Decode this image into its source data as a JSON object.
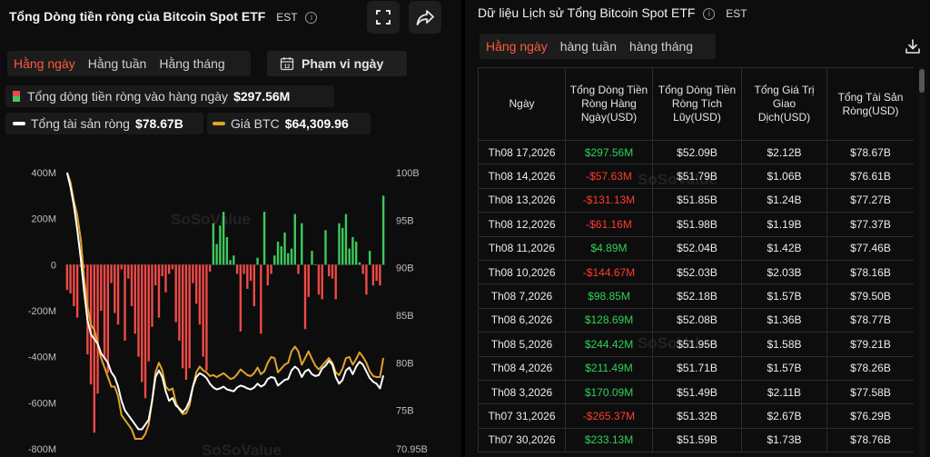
{
  "left_panel": {
    "title": "Tổng Dòng tiền ròng của Bitcoin Spot ETF",
    "timezone": "EST",
    "tabs": [
      "Hằng ngày",
      "Hằng tuần",
      "Hằng tháng"
    ],
    "active_tab": 0,
    "range_button": "Phạm vi ngày",
    "legend": {
      "net_flow_label": "Tổng dòng tiền ròng vào hàng ngày",
      "net_flow_value": "$297.56M",
      "net_assets_label": "Tổng tài sản ròng",
      "net_assets_value": "$78.67B",
      "btc_price_label": "Giá BTC",
      "btc_price_value": "$64,309.96"
    },
    "watermark": "SoSoValue",
    "icons": [
      "expand-icon",
      "share-icon",
      "calendar-icon",
      "info-icon"
    ]
  },
  "chart_data": {
    "type": "bar",
    "left_axis": {
      "ticks": [
        "400M",
        "200M",
        "0",
        "-200M",
        "-400M",
        "-600M",
        "-800M"
      ],
      "range": [
        -800,
        400
      ],
      "unit": "M"
    },
    "right_axis": {
      "ticks": [
        "100B",
        "95B",
        "90B",
        "85B",
        "80B",
        "75B",
        "70.95B"
      ],
      "range": [
        70.95,
        100
      ],
      "unit": "B"
    },
    "flows": [
      -110,
      -125,
      -180,
      -230,
      -10,
      -15,
      -390,
      -520,
      -730,
      -560,
      -200,
      -410,
      -470,
      -80,
      -210,
      -260,
      -20,
      -330,
      -60,
      -180,
      -300,
      -400,
      -510,
      -580,
      -420,
      -270,
      -90,
      -230,
      -50,
      -120,
      -40,
      -20,
      -250,
      -330,
      -450,
      -500,
      -450,
      -80,
      -170,
      -260,
      -400,
      -460,
      -30,
      180,
      90,
      170,
      230,
      120,
      20,
      40,
      -40,
      -290,
      -40,
      -105,
      -70,
      -180,
      30,
      -300,
      230,
      -90,
      -40,
      40,
      100,
      80,
      140,
      50,
      70,
      220,
      -40,
      180,
      -280,
      -140,
      60,
      0,
      -130,
      -150,
      150,
      -50,
      -60,
      -150,
      180,
      160,
      220,
      70,
      120,
      100,
      10,
      -40,
      -130,
      60,
      -90,
      -70,
      -90,
      300
    ],
    "net_assets": [
      100,
      98.5,
      96.5,
      94,
      91,
      87.5,
      84.5,
      83,
      82.5,
      82,
      81,
      80.5,
      80,
      79,
      78.5,
      77.5,
      76,
      75,
      74.5,
      74,
      73.5,
      73,
      73,
      73.5,
      74,
      76,
      78.5,
      79.2,
      78.5,
      77,
      76,
      76.3,
      75.5,
      75.2,
      74.8,
      75.2,
      76,
      77.5,
      78.5,
      78.9,
      78.7,
      78.4,
      77.8,
      77.4,
      77.2,
      77.3,
      77.5,
      77.2,
      77.1,
      77,
      77.4,
      77.6,
      77.5,
      77.3,
      77.2,
      77.4,
      77.8,
      77.5,
      77.7,
      78.3,
      78.5,
      78.4,
      77.6,
      77.9,
      78.2,
      78.3,
      79.2,
      79.6,
      79.3,
      78.5,
      79.1,
      79.3,
      78.8,
      78.6,
      78.7,
      79.4,
      79.7,
      80.2,
      79.8,
      78.5,
      77.8,
      78.2,
      79.2,
      79.5,
      78.8,
      79.6,
      80.1,
      79.8,
      79.1,
      78.4,
      78,
      77.8,
      77.3,
      78.67
    ],
    "btc_price": [
      100,
      99,
      97,
      95.5,
      93,
      89,
      86,
      84,
      83.5,
      82,
      80.5,
      79.5,
      78.5,
      77.5,
      77.5,
      76.5,
      74.5,
      74,
      73.5,
      73,
      72,
      72,
      72,
      72.5,
      73.5,
      76,
      79,
      80,
      79.2,
      77.5,
      77.1,
      77.3,
      75.8,
      75.1,
      74.6,
      74.7,
      75.5,
      77.5,
      79,
      79.6,
      79.2,
      79,
      78.6,
      78.7,
      78.5,
      78.7,
      78.9,
      78.6,
      78.3,
      78.4,
      78.8,
      79.3,
      79,
      78.7,
      78.6,
      78.9,
      79.5,
      78.8,
      79.1,
      80,
      80.6,
      80.5,
      79,
      79.4,
      79.8,
      80,
      81.2,
      81.7,
      81.2,
      79.8,
      80.5,
      81.2,
      80.4,
      79.7,
      79.3,
      79.7,
      80.1,
      80.5,
      80,
      79,
      78.7,
      79.4,
      80.5,
      80.6,
      79.8,
      80.4,
      81.1,
      80.6,
      80,
      79.1,
      78.6,
      78.5,
      78.5,
      80.5
    ]
  },
  "right_panel": {
    "title": "Dữ liệu Lịch sử Tổng Bitcoin Spot ETF",
    "timezone": "EST",
    "tabs": [
      "Hằng ngày",
      "hàng tuần",
      "hàng tháng"
    ],
    "active_tab": 0,
    "columns": [
      "Ngày",
      "Tổng Dòng Tiền Ròng Hàng Ngày(USD)",
      "Tổng Dòng Tiền Ròng Tích Lũy(USD)",
      "Tổng Giá Trị Giao Dịch(USD)",
      "Tổng Tài Sản Ròng(USD)"
    ],
    "rows": [
      [
        "Th08 17,2026",
        "$297.56M",
        "$52.09B",
        "$2.12B",
        "$78.67B"
      ],
      [
        "Th08 14,2026",
        "-$57.63M",
        "$51.79B",
        "$1.06B",
        "$76.61B"
      ],
      [
        "Th08 13,2026",
        "-$131.13M",
        "$51.85B",
        "$1.24B",
        "$77.27B"
      ],
      [
        "Th08 12,2026",
        "-$61.16M",
        "$51.98B",
        "$1.19B",
        "$77.37B"
      ],
      [
        "Th08 11,2026",
        "$4.89M",
        "$52.04B",
        "$1.42B",
        "$77.46B"
      ],
      [
        "Th08 10,2026",
        "-$144.67M",
        "$52.03B",
        "$2.03B",
        "$78.16B"
      ],
      [
        "Th08 7,2026",
        "$98.85M",
        "$52.18B",
        "$1.57B",
        "$79.50B"
      ],
      [
        "Th08 6,2026",
        "$128.69M",
        "$52.08B",
        "$1.36B",
        "$78.77B"
      ],
      [
        "Th08 5,2026",
        "$244.42M",
        "$51.95B",
        "$1.58B",
        "$79.21B"
      ],
      [
        "Th08 4,2026",
        "$211.49M",
        "$51.71B",
        "$1.57B",
        "$78.26B"
      ],
      [
        "Th08 3,2026",
        "$170.09M",
        "$51.49B",
        "$2.11B",
        "$77.58B"
      ],
      [
        "Th07 31,2026",
        "-$265.37M",
        "$51.32B",
        "$2.67B",
        "$76.29B"
      ],
      [
        "Th07 30,2026",
        "$233.13M",
        "$51.59B",
        "$1.73B",
        "$78.76B"
      ]
    ]
  },
  "colors": {
    "positive": "#2fd15a",
    "negative": "#ff3b30",
    "bar_positive": "#3ec95c",
    "bar_negative": "#ef4a48",
    "net_assets_line": "#ffffff",
    "btc_price_line": "#e0a32a",
    "accent_tab": "#ff5a3d"
  }
}
